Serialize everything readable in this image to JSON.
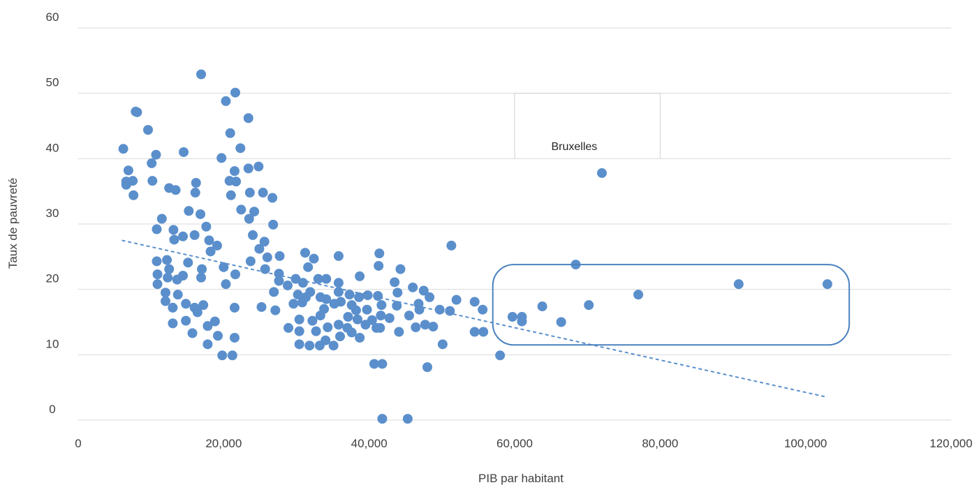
{
  "chart_data": {
    "type": "scatter",
    "title": "",
    "xlabel": "PIB par habitant",
    "ylabel": "Taux de pauvreté",
    "xlim": [
      0,
      120000
    ],
    "ylim": [
      0,
      60
    ],
    "x_ticks": [
      "0",
      "20,000",
      "40,000",
      "60,000",
      "80,000",
      "100,000",
      "120,000"
    ],
    "y_ticks": [
      "0",
      "10",
      "20",
      "30",
      "40",
      "50",
      "60"
    ],
    "grid": "horizontal",
    "marker_color": "#5B8FCC",
    "trendline": {
      "style": "dashed",
      "color": "#5B8FCC",
      "x": [
        6000,
        103000
      ],
      "y": [
        27.5,
        3.5
      ]
    },
    "annotation": {
      "text": "Bruxelles",
      "x": 72000,
      "y": 38.2
    },
    "highlight_box": {
      "x": [
        57000,
        106000
      ],
      "y": [
        11.5,
        23.8
      ],
      "color": "#4A82BE"
    },
    "series": [
      {
        "points": [
          [
            6200,
            41.5
          ],
          [
            6600,
            36.5
          ],
          [
            6600,
            36
          ],
          [
            6900,
            38.2
          ],
          [
            7500,
            36.6
          ],
          [
            7600,
            34.4
          ],
          [
            7900,
            47.2
          ],
          [
            8100,
            47.1
          ],
          [
            9600,
            44.4
          ],
          [
            10100,
            39.3
          ],
          [
            10200,
            36.6
          ],
          [
            10700,
            40.6
          ],
          [
            10800,
            29.2
          ],
          [
            10800,
            24.3
          ],
          [
            10900,
            22.3
          ],
          [
            10900,
            20.8
          ],
          [
            11500,
            30.8
          ],
          [
            12000,
            18.2
          ],
          [
            12000,
            19.5
          ],
          [
            12200,
            24.5
          ],
          [
            12300,
            21.8
          ],
          [
            12500,
            23.1
          ],
          [
            12500,
            35.5
          ],
          [
            13000,
            17.2
          ],
          [
            13000,
            14.8
          ],
          [
            13100,
            29.1
          ],
          [
            13200,
            27.6
          ],
          [
            13400,
            35.2
          ],
          [
            13600,
            21.5
          ],
          [
            13700,
            19.2
          ],
          [
            14400,
            28.1
          ],
          [
            14400,
            22.1
          ],
          [
            14500,
            41
          ],
          [
            14800,
            17.8
          ],
          [
            14800,
            15.2
          ],
          [
            15100,
            24.1
          ],
          [
            15200,
            32
          ],
          [
            15700,
            13.3
          ],
          [
            16000,
            17.2
          ],
          [
            16000,
            28.3
          ],
          [
            16100,
            34.8
          ],
          [
            16200,
            36.3
          ],
          [
            16400,
            16.5
          ],
          [
            16800,
            31.5
          ],
          [
            16900,
            52.9
          ],
          [
            16900,
            21.8
          ],
          [
            17000,
            23.1
          ],
          [
            17200,
            17.6
          ],
          [
            17600,
            29.6
          ],
          [
            17800,
            14.4
          ],
          [
            17800,
            11.6
          ],
          [
            18000,
            27.5
          ],
          [
            18200,
            25.8
          ],
          [
            18800,
            15.1
          ],
          [
            19100,
            26.7
          ],
          [
            19200,
            12.9
          ],
          [
            19700,
            40.1
          ],
          [
            19800,
            9.9
          ],
          [
            20000,
            23.4
          ],
          [
            20300,
            48.8
          ],
          [
            20300,
            20.8
          ],
          [
            20800,
            36.6
          ],
          [
            20900,
            43.9
          ],
          [
            21000,
            34.4
          ],
          [
            21200,
            9.9
          ],
          [
            21500,
            38.1
          ],
          [
            21500,
            17.2
          ],
          [
            21500,
            12.6
          ],
          [
            21600,
            50.1
          ],
          [
            21600,
            22.3
          ],
          [
            21700,
            36.5
          ],
          [
            22300,
            41.6
          ],
          [
            22400,
            32.2
          ],
          [
            23400,
            38.5
          ],
          [
            23400,
            46.2
          ],
          [
            23500,
            30.8
          ],
          [
            23600,
            34.8
          ],
          [
            23700,
            24.3
          ],
          [
            24000,
            28.3
          ],
          [
            24200,
            31.9
          ],
          [
            24800,
            38.8
          ],
          [
            24900,
            26.2
          ],
          [
            25200,
            17.3
          ],
          [
            25400,
            34.8
          ],
          [
            25600,
            27.3
          ],
          [
            25700,
            23.1
          ],
          [
            26000,
            24.9
          ],
          [
            26700,
            34
          ],
          [
            26800,
            29.9
          ],
          [
            26900,
            19.6
          ],
          [
            27100,
            16.8
          ],
          [
            27600,
            22.4
          ],
          [
            27600,
            21.3
          ],
          [
            27700,
            25.1
          ],
          [
            28800,
            20.6
          ],
          [
            28900,
            14.1
          ],
          [
            29600,
            17.8
          ],
          [
            29900,
            21.6
          ],
          [
            30200,
            19.2
          ],
          [
            30400,
            11.6
          ],
          [
            30400,
            15.4
          ],
          [
            30400,
            13.6
          ],
          [
            30800,
            18
          ],
          [
            30900,
            21
          ],
          [
            31200,
            25.6
          ],
          [
            31300,
            18.8
          ],
          [
            31600,
            23.4
          ],
          [
            31800,
            11.4
          ],
          [
            31900,
            19.6
          ],
          [
            32200,
            15.2
          ],
          [
            32400,
            24.7
          ],
          [
            32700,
            13.6
          ],
          [
            33000,
            21.6
          ],
          [
            33200,
            11.4
          ],
          [
            33300,
            18.8
          ],
          [
            33300,
            16
          ],
          [
            33800,
            17
          ],
          [
            34000,
            12.2
          ],
          [
            34100,
            18.5
          ],
          [
            34100,
            21.6
          ],
          [
            34300,
            14.2
          ],
          [
            35100,
            11.4
          ],
          [
            35200,
            17.8
          ],
          [
            35800,
            21
          ],
          [
            35800,
            14.6
          ],
          [
            35800,
            25.1
          ],
          [
            35800,
            19.6
          ],
          [
            36000,
            12.8
          ],
          [
            36100,
            18.1
          ],
          [
            37000,
            14.1
          ],
          [
            37100,
            15.8
          ],
          [
            37300,
            19.2
          ],
          [
            37600,
            17.6
          ],
          [
            37600,
            13.4
          ],
          [
            38200,
            16.8
          ],
          [
            38400,
            15.4
          ],
          [
            38600,
            18.8
          ],
          [
            38700,
            12.6
          ],
          [
            38700,
            22
          ],
          [
            39500,
            14.6
          ],
          [
            39700,
            16.9
          ],
          [
            39800,
            19.1
          ],
          [
            40400,
            15.3
          ],
          [
            40700,
            8.6
          ],
          [
            41000,
            14.1
          ],
          [
            41200,
            19
          ],
          [
            41300,
            23.6
          ],
          [
            41400,
            25.5
          ],
          [
            41500,
            14.1
          ],
          [
            41600,
            16
          ],
          [
            41700,
            17.6
          ],
          [
            41800,
            8.6
          ],
          [
            41800,
            0.2
          ],
          [
            42800,
            15.6
          ],
          [
            43500,
            21.1
          ],
          [
            43800,
            17.5
          ],
          [
            43900,
            19.5
          ],
          [
            44100,
            13.5
          ],
          [
            44300,
            23.1
          ],
          [
            45300,
            0.2
          ],
          [
            45500,
            16
          ],
          [
            46000,
            20.3
          ],
          [
            46400,
            14.2
          ],
          [
            46800,
            17.8
          ],
          [
            46900,
            16.9
          ],
          [
            47500,
            19.8
          ],
          [
            47700,
            14.6
          ],
          [
            48000,
            8.1
          ],
          [
            48300,
            18.8
          ],
          [
            48800,
            14.3
          ],
          [
            49700,
            16.9
          ],
          [
            50100,
            11.6
          ],
          [
            51100,
            16.7
          ],
          [
            51300,
            26.7
          ],
          [
            52000,
            18.4
          ],
          [
            54500,
            13.5
          ],
          [
            54500,
            18.1
          ],
          [
            55600,
            16.9
          ],
          [
            55700,
            13.5
          ],
          [
            58000,
            9.9
          ],
          [
            59700,
            15.8
          ],
          [
            61000,
            15.8
          ],
          [
            61000,
            15.1
          ],
          [
            63800,
            17.4
          ],
          [
            66400,
            15
          ],
          [
            68400,
            23.8
          ],
          [
            70200,
            17.6
          ],
          [
            72000,
            37.8
          ],
          [
            77000,
            19.2
          ],
          [
            90800,
            20.8
          ],
          [
            103000,
            20.8
          ]
        ]
      }
    ]
  }
}
